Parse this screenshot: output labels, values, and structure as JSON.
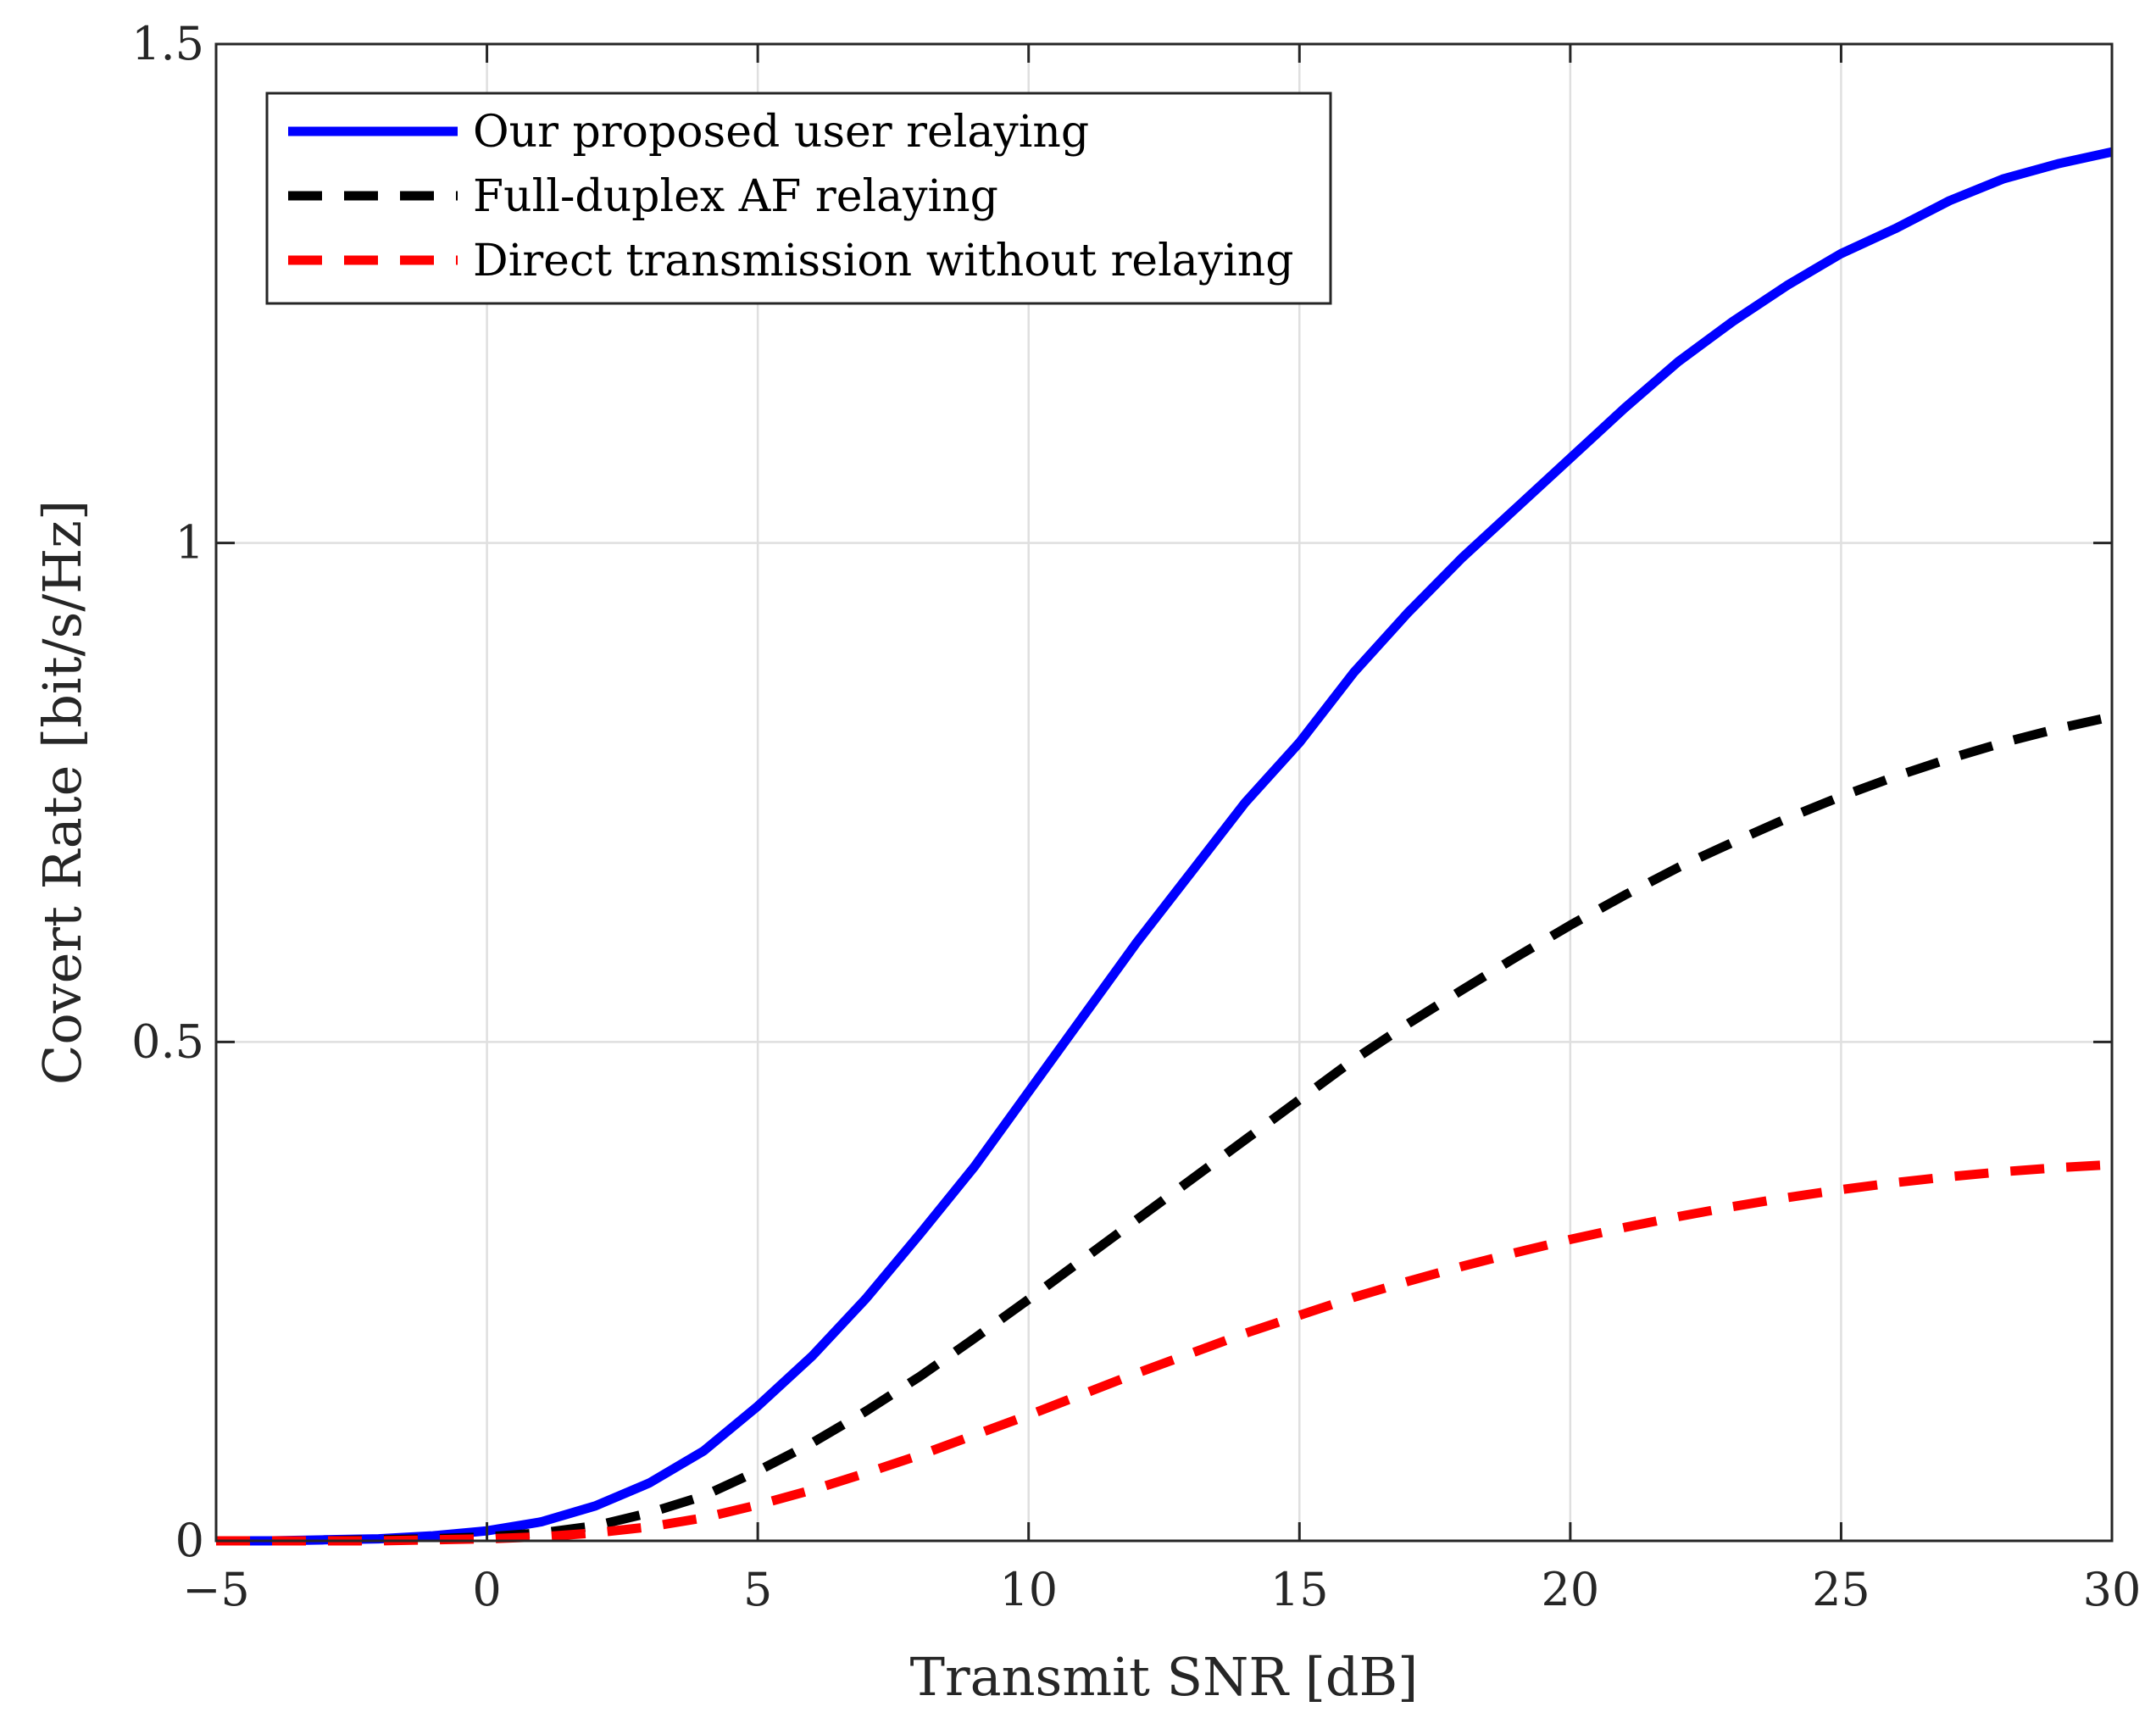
{
  "chart_data": {
    "type": "line",
    "xlabel": "Transmit SNR [dB]",
    "ylabel": "Covert Rate [bit/s/Hz]",
    "xlim": [
      -5,
      30
    ],
    "ylim": [
      0,
      1.5
    ],
    "xticks": [
      -5,
      0,
      5,
      10,
      15,
      20,
      25,
      30
    ],
    "xtick_labels": [
      "−5",
      "0",
      "5",
      "10",
      "15",
      "20",
      "25",
      "30"
    ],
    "yticks": [
      0,
      0.5,
      1,
      1.5
    ],
    "ytick_labels": [
      "0",
      "0.5",
      "1",
      "1.5"
    ],
    "grid": true,
    "legend_position": "top-left",
    "x": [
      -5,
      -4,
      -3,
      -2,
      -1,
      0,
      1,
      2,
      3,
      4,
      5,
      6,
      7,
      8,
      9,
      10,
      11,
      12,
      13,
      14,
      15,
      16,
      17,
      18,
      19,
      20,
      21,
      22,
      23,
      24,
      25,
      26,
      27,
      28,
      29,
      30
    ],
    "series": [
      {
        "name": "Our proposed user relaying",
        "color": "#0000ff",
        "style": "solid",
        "values": [
          0,
          0,
          0.001,
          0.002,
          0.005,
          0.01,
          0.019,
          0.035,
          0.058,
          0.09,
          0.135,
          0.185,
          0.243,
          0.308,
          0.375,
          0.45,
          0.525,
          0.6,
          0.67,
          0.74,
          0.8,
          0.87,
          0.93,
          0.985,
          1.035,
          1.085,
          1.135,
          1.182,
          1.222,
          1.258,
          1.29,
          1.315,
          1.343,
          1.365,
          1.38,
          1.392
        ]
      },
      {
        "name": "Full-duplex AF relaying",
        "color": "#000000",
        "style": "dashed",
        "values": [
          0,
          0,
          0,
          0.001,
          0.002,
          0.004,
          0.008,
          0.015,
          0.028,
          0.045,
          0.07,
          0.098,
          0.13,
          0.165,
          0.203,
          0.242,
          0.282,
          0.322,
          0.362,
          0.402,
          0.442,
          0.482,
          0.518,
          0.552,
          0.585,
          0.617,
          0.647,
          0.675,
          0.7,
          0.724,
          0.746,
          0.766,
          0.784,
          0.8,
          0.814,
          0.826
        ]
      },
      {
        "name": "Direct transmission without relaying",
        "color": "#ff0000",
        "style": "dashed",
        "values": [
          0,
          0,
          0,
          0,
          0.001,
          0.002,
          0.004,
          0.008,
          0.014,
          0.023,
          0.036,
          0.051,
          0.068,
          0.086,
          0.106,
          0.126,
          0.147,
          0.168,
          0.188,
          0.208,
          0.226,
          0.244,
          0.26,
          0.275,
          0.289,
          0.302,
          0.314,
          0.325,
          0.335,
          0.344,
          0.352,
          0.359,
          0.365,
          0.37,
          0.374,
          0.377
        ]
      }
    ]
  }
}
